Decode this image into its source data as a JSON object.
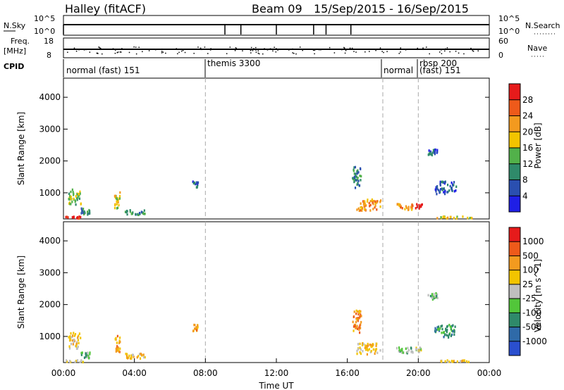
{
  "header": {
    "station": "Halley (fitACF)",
    "beam": "Beam 09",
    "date_range": "15/Sep/2015 - 16/Sep/2015"
  },
  "noise_panel": {
    "left_label": "N.Sky",
    "right_label": "N.Search",
    "left_ticks": [
      "10^5",
      "10^0"
    ],
    "right_ticks": [
      "10^5",
      "10^0"
    ]
  },
  "freq_panel": {
    "left_label_top": "Freq.",
    "left_label_bottom": "[MHz]",
    "right_label": "Nave",
    "left_ticks": [
      "18",
      "8"
    ],
    "right_ticks": [
      "60",
      "0"
    ]
  },
  "cpid": {
    "label": "CPID",
    "segments": [
      {
        "start_h": 0.0,
        "end_h": 8.0,
        "text": "normal (fast) 151"
      },
      {
        "start_h": 8.0,
        "end_h": 18.0,
        "text": "themis 3300"
      },
      {
        "start_h": 18.0,
        "end_h": 20.0,
        "text": "normal"
      },
      {
        "start_h": 20.0,
        "end_h": 24.0,
        "text": "rbsp 200"
      },
      {
        "start_h": 20.0,
        "end_h": 24.0,
        "text": "(fast) 151"
      }
    ]
  },
  "chart_data": [
    {
      "type": "heatmap",
      "name": "Power",
      "ylabel": "Slant Range [km]",
      "colorbar_label": "Power [dB]",
      "ylim": [
        180,
        4600
      ],
      "yticks": [
        "1000",
        "2000",
        "3000",
        "4000"
      ],
      "colorbar_ticks": [
        "4",
        "8",
        "12",
        "16",
        "20",
        "24",
        "28"
      ],
      "colors": [
        "#1f1fe6",
        "#2a4fb0",
        "#2f8a6a",
        "#52b14a",
        "#f2c400",
        "#f39a1f",
        "#ee5a1a",
        "#e61b1b"
      ],
      "blobs": [
        {
          "t": 0.3,
          "r": 260,
          "dt": 1.6,
          "dr": 60,
          "level": 7
        },
        {
          "t": 0.6,
          "r": 900,
          "dt": 0.7,
          "dr": 500,
          "level": 3
        },
        {
          "t": 1.2,
          "r": 450,
          "dt": 0.5,
          "dr": 200,
          "level": 2
        },
        {
          "t": 3.0,
          "r": 800,
          "dt": 0.3,
          "dr": 500,
          "level": 4
        },
        {
          "t": 4.0,
          "r": 420,
          "dt": 1.2,
          "dr": 150,
          "level": 2
        },
        {
          "t": 7.4,
          "r": 1300,
          "dt": 0.3,
          "dr": 200,
          "level": 1
        },
        {
          "t": 16.5,
          "r": 1500,
          "dt": 0.5,
          "dr": 700,
          "level": 2
        },
        {
          "t": 17.2,
          "r": 650,
          "dt": 1.4,
          "dr": 350,
          "level": 5
        },
        {
          "t": 19.2,
          "r": 600,
          "dt": 0.9,
          "dr": 200,
          "level": 5
        },
        {
          "t": 20.0,
          "r": 620,
          "dt": 0.4,
          "dr": 150,
          "level": 7
        },
        {
          "t": 21.5,
          "r": 1200,
          "dt": 1.2,
          "dr": 400,
          "level": 1
        },
        {
          "t": 22.0,
          "r": 260,
          "dt": 2.0,
          "dr": 60,
          "level": 4
        },
        {
          "t": 20.8,
          "r": 2300,
          "dt": 0.6,
          "dr": 200,
          "level": 1
        }
      ]
    },
    {
      "type": "heatmap",
      "name": "Velocity",
      "ylabel": "Slant Range [km]",
      "xlabel": "Time UT",
      "colorbar_label": "Velocity [m s^-1]",
      "ylim": [
        180,
        4600
      ],
      "xlim": [
        0,
        24
      ],
      "xticks": [
        "00:00",
        "04:00",
        "08:00",
        "12:00",
        "16:00",
        "20:00",
        "00:00"
      ],
      "yticks": [
        "1000",
        "2000",
        "3000",
        "4000"
      ],
      "colorbar_ticks": [
        "1000",
        "500",
        "100",
        "25",
        "-25",
        "-100",
        "-500",
        "-1000"
      ],
      "colors": [
        "#2a4fcf",
        "#2f6aa8",
        "#2f8a6a",
        "#52c63a",
        "#bfbfbf",
        "#f2c400",
        "#f39a1f",
        "#ee5a1a",
        "#e61b1b"
      ],
      "blobs": [
        {
          "t": 0.3,
          "r": 260,
          "dt": 1.6,
          "dr": 60,
          "level": 4
        },
        {
          "t": 0.6,
          "r": 900,
          "dt": 0.7,
          "dr": 500,
          "level": 5
        },
        {
          "t": 1.2,
          "r": 450,
          "dt": 0.5,
          "dr": 200,
          "level": 3
        },
        {
          "t": 3.0,
          "r": 800,
          "dt": 0.3,
          "dr": 500,
          "level": 6
        },
        {
          "t": 4.0,
          "r": 420,
          "dt": 1.2,
          "dr": 150,
          "level": 5
        },
        {
          "t": 7.4,
          "r": 1300,
          "dt": 0.3,
          "dr": 200,
          "level": 6
        },
        {
          "t": 16.5,
          "r": 1500,
          "dt": 0.5,
          "dr": 700,
          "level": 6
        },
        {
          "t": 17.2,
          "r": 650,
          "dt": 1.4,
          "dr": 350,
          "level": 5
        },
        {
          "t": 19.2,
          "r": 600,
          "dt": 0.9,
          "dr": 200,
          "level": 3
        },
        {
          "t": 20.0,
          "r": 620,
          "dt": 0.4,
          "dr": 150,
          "level": 4
        },
        {
          "t": 21.5,
          "r": 1200,
          "dt": 1.2,
          "dr": 400,
          "level": 2
        },
        {
          "t": 22.0,
          "r": 260,
          "dt": 2.0,
          "dr": 60,
          "level": 5
        },
        {
          "t": 20.8,
          "r": 2300,
          "dt": 0.6,
          "dr": 200,
          "level": 3
        }
      ]
    }
  ]
}
